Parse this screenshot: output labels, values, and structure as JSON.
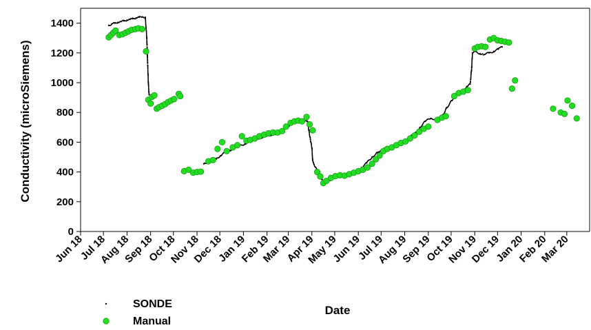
{
  "chart_data": {
    "type": "scatter",
    "xlabel": "Date",
    "ylabel": "Conductivity (microSiemens)",
    "ylim": [
      0,
      1500
    ],
    "yticks": [
      0,
      200,
      400,
      600,
      800,
      1000,
      1200,
      1400
    ],
    "xlim": [
      "2018-06-01",
      "2020-03-31"
    ],
    "xticks": [
      {
        "date": "2018-06-01",
        "label": "Jun 18"
      },
      {
        "date": "2018-07-01",
        "label": "Jul 18"
      },
      {
        "date": "2018-08-01",
        "label": "Aug 18"
      },
      {
        "date": "2018-09-01",
        "label": "Sep 18"
      },
      {
        "date": "2018-10-01",
        "label": "Oct 18"
      },
      {
        "date": "2018-11-01",
        "label": "Nov 18"
      },
      {
        "date": "2018-12-01",
        "label": "Dec 18"
      },
      {
        "date": "2019-01-01",
        "label": "Jan 19"
      },
      {
        "date": "2019-02-01",
        "label": "Feb 19"
      },
      {
        "date": "2019-03-01",
        "label": "Mar 19"
      },
      {
        "date": "2019-04-01",
        "label": "Apr 19"
      },
      {
        "date": "2019-05-01",
        "label": "May 19"
      },
      {
        "date": "2019-06-01",
        "label": "Jun 19"
      },
      {
        "date": "2019-07-01",
        "label": "Jul 19"
      },
      {
        "date": "2019-08-01",
        "label": "Aug 19"
      },
      {
        "date": "2019-09-01",
        "label": "Sep 19"
      },
      {
        "date": "2019-10-01",
        "label": "Oct 19"
      },
      {
        "date": "2019-11-01",
        "label": "Nov 19"
      },
      {
        "date": "2019-12-01",
        "label": "Dec 19"
      },
      {
        "date": "2020-01-01",
        "label": "Jan 20"
      },
      {
        "date": "2020-02-01",
        "label": "Feb 20"
      },
      {
        "date": "2020-03-01",
        "label": "Mar 20"
      }
    ],
    "legend_position": "bottom-left",
    "grid": false,
    "series": [
      {
        "name": "SONDE",
        "marker": "small-dot",
        "color": "#000000",
        "points": [
          [
            "2018-07-08",
            1385
          ],
          [
            "2018-07-12",
            1395
          ],
          [
            "2018-07-16",
            1400
          ],
          [
            "2018-07-20",
            1405
          ],
          [
            "2018-07-24",
            1410
          ],
          [
            "2018-07-28",
            1415
          ],
          [
            "2018-08-01",
            1420
          ],
          [
            "2018-08-05",
            1425
          ],
          [
            "2018-08-09",
            1430
          ],
          [
            "2018-08-13",
            1435
          ],
          [
            "2018-08-17",
            1440
          ],
          [
            "2018-08-21",
            1442
          ],
          [
            "2018-08-25",
            1440
          ],
          [
            "2018-08-27",
            1300
          ],
          [
            "2018-08-28",
            1150
          ],
          [
            "2018-08-29",
            1000
          ],
          [
            "2018-08-30",
            920
          ],
          [
            "2018-09-02",
            900
          ],
          [
            "2018-09-04",
            895
          ],
          [
            "2018-11-10",
            455
          ],
          [
            "2018-11-15",
            465
          ],
          [
            "2018-11-20",
            475
          ],
          [
            "2018-11-26",
            490
          ],
          [
            "2018-12-02",
            510
          ],
          [
            "2018-12-08",
            530
          ],
          [
            "2018-12-14",
            545
          ],
          [
            "2018-12-20",
            560
          ],
          [
            "2018-12-27",
            575
          ],
          [
            "2019-01-03",
            590
          ],
          [
            "2019-01-10",
            605
          ],
          [
            "2019-01-17",
            620
          ],
          [
            "2019-01-24",
            630
          ],
          [
            "2019-01-31",
            640
          ],
          [
            "2019-02-07",
            650
          ],
          [
            "2019-02-14",
            660
          ],
          [
            "2019-02-21",
            680
          ],
          [
            "2019-02-28",
            705
          ],
          [
            "2019-03-07",
            730
          ],
          [
            "2019-03-14",
            745
          ],
          [
            "2019-03-21",
            755
          ],
          [
            "2019-03-26",
            740
          ],
          [
            "2019-03-28",
            680
          ],
          [
            "2019-03-30",
            620
          ],
          [
            "2019-04-01",
            560
          ],
          [
            "2019-04-02",
            480
          ],
          [
            "2019-04-04",
            450
          ],
          [
            "2019-04-07",
            420
          ],
          [
            "2019-04-10",
            380
          ],
          [
            "2019-04-14",
            350
          ],
          [
            "2019-04-18",
            340
          ],
          [
            "2019-04-24",
            345
          ],
          [
            "2019-05-01",
            360
          ],
          [
            "2019-05-08",
            370
          ],
          [
            "2019-05-15",
            380
          ],
          [
            "2019-05-22",
            395
          ],
          [
            "2019-05-29",
            410
          ],
          [
            "2019-06-05",
            430
          ],
          [
            "2019-06-12",
            460
          ],
          [
            "2019-06-19",
            500
          ],
          [
            "2019-06-26",
            530
          ],
          [
            "2019-07-03",
            550
          ],
          [
            "2019-07-10",
            565
          ],
          [
            "2019-07-17",
            580
          ],
          [
            "2019-07-24",
            595
          ],
          [
            "2019-07-31",
            610
          ],
          [
            "2019-08-07",
            630
          ],
          [
            "2019-08-14",
            660
          ],
          [
            "2019-08-21",
            700
          ],
          [
            "2019-08-28",
            740
          ],
          [
            "2019-09-04",
            760
          ],
          [
            "2019-09-11",
            755
          ],
          [
            "2019-09-18",
            760
          ],
          [
            "2019-09-25",
            830
          ],
          [
            "2019-10-02",
            880
          ],
          [
            "2019-10-09",
            920
          ],
          [
            "2019-10-16",
            950
          ],
          [
            "2019-10-22",
            975
          ],
          [
            "2019-10-26",
            990
          ],
          [
            "2019-10-28",
            1100
          ],
          [
            "2019-10-29",
            1200
          ],
          [
            "2019-11-02",
            1210
          ],
          [
            "2019-11-08",
            1195
          ],
          [
            "2019-11-14",
            1190
          ],
          [
            "2019-11-20",
            1200
          ],
          [
            "2019-11-26",
            1210
          ],
          [
            "2019-12-02",
            1225
          ],
          [
            "2019-12-07",
            1240
          ]
        ]
      },
      {
        "name": "Manual",
        "marker": "circle",
        "color": "#22dd22",
        "points": [
          [
            "2018-07-08",
            1305
          ],
          [
            "2018-07-11",
            1320
          ],
          [
            "2018-07-14",
            1335
          ],
          [
            "2018-07-17",
            1350
          ],
          [
            "2018-07-22",
            1320
          ],
          [
            "2018-07-26",
            1325
          ],
          [
            "2018-07-30",
            1335
          ],
          [
            "2018-08-03",
            1345
          ],
          [
            "2018-08-07",
            1355
          ],
          [
            "2018-08-12",
            1360
          ],
          [
            "2018-08-16",
            1365
          ],
          [
            "2018-08-21",
            1360
          ],
          [
            "2018-08-26",
            1210
          ],
          [
            "2018-08-29",
            885
          ],
          [
            "2018-09-01",
            860
          ],
          [
            "2018-09-03",
            905
          ],
          [
            "2018-09-06",
            915
          ],
          [
            "2018-09-09",
            825
          ],
          [
            "2018-09-12",
            835
          ],
          [
            "2018-09-16",
            845
          ],
          [
            "2018-09-20",
            855
          ],
          [
            "2018-09-24",
            870
          ],
          [
            "2018-09-28",
            880
          ],
          [
            "2018-10-02",
            890
          ],
          [
            "2018-10-08",
            925
          ],
          [
            "2018-10-10",
            910
          ],
          [
            "2018-10-15",
            405
          ],
          [
            "2018-10-21",
            415
          ],
          [
            "2018-10-27",
            395
          ],
          [
            "2018-11-01",
            400
          ],
          [
            "2018-11-06",
            402
          ],
          [
            "2018-11-16",
            472
          ],
          [
            "2018-11-22",
            480
          ],
          [
            "2018-11-28",
            555
          ],
          [
            "2018-12-04",
            600
          ],
          [
            "2018-12-10",
            540
          ],
          [
            "2018-12-18",
            565
          ],
          [
            "2018-12-24",
            580
          ],
          [
            "2018-12-30",
            640
          ],
          [
            "2019-01-05",
            610
          ],
          [
            "2019-01-10",
            615
          ],
          [
            "2019-01-16",
            625
          ],
          [
            "2019-01-22",
            640
          ],
          [
            "2019-01-28",
            650
          ],
          [
            "2019-02-03",
            660
          ],
          [
            "2019-02-09",
            665
          ],
          [
            "2019-02-15",
            665
          ],
          [
            "2019-02-21",
            675
          ],
          [
            "2019-02-26",
            705
          ],
          [
            "2019-03-04",
            730
          ],
          [
            "2019-03-09",
            740
          ],
          [
            "2019-03-14",
            745
          ],
          [
            "2019-03-19",
            740
          ],
          [
            "2019-03-25",
            770
          ],
          [
            "2019-03-29",
            720
          ],
          [
            "2019-04-02",
            680
          ],
          [
            "2019-04-08",
            400
          ],
          [
            "2019-04-12",
            370
          ],
          [
            "2019-04-16",
            325
          ],
          [
            "2019-04-20",
            340
          ],
          [
            "2019-04-26",
            360
          ],
          [
            "2019-05-02",
            372
          ],
          [
            "2019-05-08",
            378
          ],
          [
            "2019-05-14",
            375
          ],
          [
            "2019-05-20",
            385
          ],
          [
            "2019-05-26",
            395
          ],
          [
            "2019-06-01",
            405
          ],
          [
            "2019-06-07",
            415
          ],
          [
            "2019-06-13",
            430
          ],
          [
            "2019-06-19",
            455
          ],
          [
            "2019-06-24",
            485
          ],
          [
            "2019-06-29",
            510
          ],
          [
            "2019-07-04",
            540
          ],
          [
            "2019-07-09",
            555
          ],
          [
            "2019-07-15",
            565
          ],
          [
            "2019-07-21",
            580
          ],
          [
            "2019-07-27",
            595
          ],
          [
            "2019-08-02",
            605
          ],
          [
            "2019-08-08",
            625
          ],
          [
            "2019-08-14",
            645
          ],
          [
            "2019-08-20",
            670
          ],
          [
            "2019-08-26",
            690
          ],
          [
            "2019-09-01",
            705
          ],
          [
            "2019-09-13",
            750
          ],
          [
            "2019-09-19",
            765
          ],
          [
            "2019-09-24",
            775
          ],
          [
            "2019-10-05",
            910
          ],
          [
            "2019-10-11",
            930
          ],
          [
            "2019-10-17",
            940
          ],
          [
            "2019-10-23",
            950
          ],
          [
            "2019-11-01",
            1230
          ],
          [
            "2019-11-05",
            1240
          ],
          [
            "2019-11-10",
            1245
          ],
          [
            "2019-11-15",
            1240
          ],
          [
            "2019-11-21",
            1290
          ],
          [
            "2019-11-26",
            1300
          ],
          [
            "2019-12-01",
            1285
          ],
          [
            "2019-12-06",
            1280
          ],
          [
            "2019-12-11",
            1275
          ],
          [
            "2019-12-16",
            1270
          ],
          [
            "2019-12-20",
            960
          ],
          [
            "2019-12-24",
            1015
          ],
          [
            "2020-02-12",
            825
          ],
          [
            "2020-02-22",
            800
          ],
          [
            "2020-02-27",
            790
          ],
          [
            "2020-03-02",
            880
          ],
          [
            "2020-03-08",
            845
          ],
          [
            "2020-03-14",
            760
          ]
        ]
      }
    ]
  }
}
